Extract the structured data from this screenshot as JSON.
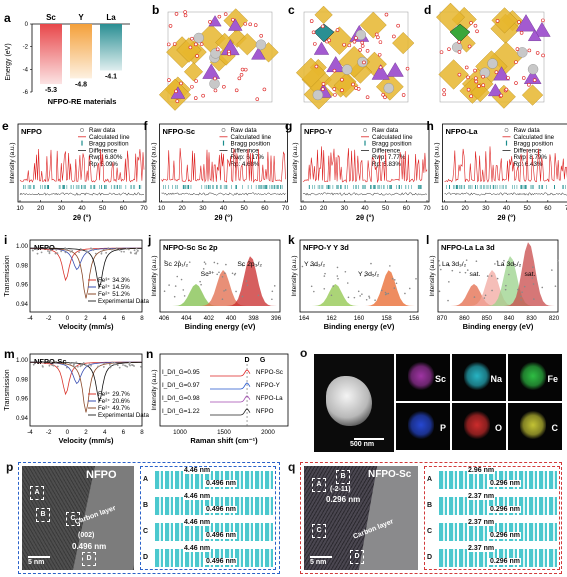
{
  "panel_letters": [
    "a",
    "b",
    "c",
    "d",
    "e",
    "f",
    "g",
    "h",
    "i",
    "j",
    "k",
    "l",
    "m",
    "n",
    "o",
    "p",
    "q"
  ],
  "a": {
    "ylabel": "Energy (eV)",
    "xlabel": "NFPO-RE materials",
    "bars": [
      {
        "name": "Sc",
        "value": -5.3,
        "label": "-5.3",
        "color": "#e8474a"
      },
      {
        "name": "Y",
        "value": -4.8,
        "label": "-4.8",
        "color": "#f4a03a"
      },
      {
        "name": "La",
        "value": -4.1,
        "label": "-4.1",
        "color": "#2a8f93"
      }
    ],
    "ylim": [
      -6,
      0
    ]
  },
  "xrd": [
    {
      "title": "NFPO",
      "legend": [
        "Raw data",
        "Calculated line",
        "Bragg position",
        "Difference",
        "Rwp: 6.80%",
        "Rp: 5.09%"
      ],
      "ylabel": "Intensity (a.u.)",
      "xlabel": "2θ (°)",
      "ticks": [
        "10",
        "20",
        "30",
        "40",
        "50",
        "60",
        "70"
      ]
    },
    {
      "title": "NFPO-Sc",
      "legend": [
        "Raw data",
        "Calculated line",
        "Bragg position",
        "Difference",
        "Rwp: 6.17%",
        "Rp: 4.68%"
      ],
      "ylabel": "Intensity (a.u.)",
      "xlabel": "2θ (°)",
      "ticks": [
        "10",
        "20",
        "30",
        "40",
        "50",
        "60",
        "70"
      ]
    },
    {
      "title": "NFPO-Y",
      "legend": [
        "Raw data",
        "Calculated line",
        "Bragg position",
        "Difference",
        "Rwp: 7.77%",
        "Rp: 5.83%"
      ],
      "ylabel": "Intensity (a.u.)",
      "xlabel": "2θ (°)",
      "ticks": [
        "10",
        "20",
        "30",
        "40",
        "50",
        "60",
        "70"
      ]
    },
    {
      "title": "NFPO-La",
      "legend": [
        "Raw data",
        "Calculated line",
        "Bragg position",
        "Difference",
        "Rwp: 8.79%",
        "Rp: 6.43%"
      ],
      "ylabel": "Intensity (a.u.)",
      "xlabel": "2θ (°)",
      "ticks": [
        "10",
        "20",
        "30",
        "40",
        "50",
        "60",
        "70"
      ]
    }
  ],
  "mossbauer": [
    {
      "title": "NFPO",
      "ylabel": "Transmission",
      "xlabel": "Velocity (mm/s)",
      "yticks": [
        "1.00",
        "0.98",
        "0.96",
        "0.94"
      ],
      "xticks": [
        "-4",
        "-2",
        "0",
        "2",
        "4",
        "6",
        "8"
      ],
      "legend": [
        {
          "t": "Fe³⁺ 34.3%",
          "c": "#d9342b"
        },
        {
          "t": "Fe²⁺ 14.5%",
          "c": "#3a4fb3"
        },
        {
          "t": "Fe²⁺ 51.2%",
          "c": "#8a4a2a"
        },
        {
          "t": "Experimental Data",
          "c": "#333"
        }
      ]
    },
    {
      "title": "NFPO-Sc",
      "ylabel": "Transmission",
      "xlabel": "Velocity (mm/s)",
      "yticks": [
        "1.00",
        "0.98",
        "0.96",
        "0.94"
      ],
      "xticks": [
        "-4",
        "-2",
        "0",
        "2",
        "4",
        "6",
        "8"
      ],
      "legend": [
        {
          "t": "Fe³⁺ 29.7%",
          "c": "#d9342b"
        },
        {
          "t": "Fe²⁺ 20.6%",
          "c": "#3a4fb3"
        },
        {
          "t": "Fe²⁺ 49.7%",
          "c": "#8a4a2a"
        },
        {
          "t": "Experimental Data",
          "c": "#333"
        }
      ]
    }
  ],
  "xps": [
    {
      "title": "NFPO-Sc  Sc 2p",
      "ylabel": "Intensity (a.u.)",
      "xlabel": "Binding energy (eV)",
      "ticks": [
        "406",
        "404",
        "402",
        "400",
        "398",
        "396"
      ],
      "ann": [
        "Sc 2p₁/₂",
        "Sc³⁺",
        "Sc 2p₃/₂"
      ]
    },
    {
      "title": "NFPO-Y  Y 3d",
      "ylabel": "Intensity (a.u.)",
      "xlabel": "Binding energy (eV)",
      "ticks": [
        "164",
        "162",
        "160",
        "158",
        "156"
      ],
      "ann": [
        "Y 3d₃/₂",
        "Y 3d₅/₂"
      ]
    },
    {
      "title": "NFPO-La  La 3d",
      "ylabel": "Intensity (a.u.)",
      "xlabel": "Binding energy (eV)",
      "ticks": [
        "870",
        "860",
        "850",
        "840",
        "830",
        "820"
      ],
      "ann": [
        "La 3d₃/₂",
        "sat.",
        "La 3d₅/₂",
        "sat."
      ]
    }
  ],
  "raman": {
    "ylabel": "Intensity (a.u.)",
    "xlabel": "Raman shift (cm⁻¹)",
    "ticks": [
      "1000",
      "1500",
      "2000"
    ],
    "peaks": [
      "D",
      "G"
    ],
    "series": [
      {
        "name": "NFPO-Sc",
        "ratio": "I_D/I_G=0.95"
      },
      {
        "name": "NFPO-Y",
        "ratio": "I_D/I_G=0.97"
      },
      {
        "name": "NFPO-La",
        "ratio": "I_D/I_G=0.98"
      },
      {
        "name": "NFPO",
        "ratio": "I_D/I_G=1.22"
      }
    ]
  },
  "eds": {
    "scale": "500 nm",
    "maps": [
      {
        "el": "Sc",
        "c": "#b03ab5"
      },
      {
        "el": "Na",
        "c": "#2bc7d8"
      },
      {
        "el": "Fe",
        "c": "#33d24a"
      },
      {
        "el": "P",
        "c": "#2a4fe8"
      },
      {
        "el": "O",
        "c": "#e23030"
      },
      {
        "el": "C",
        "c": "#d8d83a"
      }
    ]
  },
  "tem_p": {
    "title": "NFPO",
    "carbon": "Carbon layer",
    "plane": "(002)",
    "dspace": "0.496 nm",
    "scale": "5 nm",
    "boxes": [
      "A",
      "B",
      "C",
      "D"
    ],
    "strips": [
      {
        "id": "A",
        "a": "4.46 nm",
        "b": "0.496 nm"
      },
      {
        "id": "B",
        "a": "4.46 nm",
        "b": "0.496 nm"
      },
      {
        "id": "C",
        "a": "4.46 nm",
        "b": "0.496 nm"
      },
      {
        "id": "D",
        "a": "4.46 nm",
        "b": "0.496 nm"
      }
    ]
  },
  "tem_q": {
    "title": "NFPO-Sc",
    "carbon": "Carbon layer",
    "plane": "(-2-11)",
    "dspace": "0.296 nm",
    "scale": "5 nm",
    "boxes": [
      "A",
      "B",
      "C",
      "D"
    ],
    "strips": [
      {
        "id": "A",
        "a": "2.96 nm",
        "b": "0.296 nm"
      },
      {
        "id": "B",
        "a": "2.37 nm",
        "b": "0.296 nm"
      },
      {
        "id": "C",
        "a": "2.37 nm",
        "b": "0.296 nm"
      },
      {
        "id": "D",
        "a": "2.37 nm",
        "b": "0.296 nm"
      }
    ]
  }
}
